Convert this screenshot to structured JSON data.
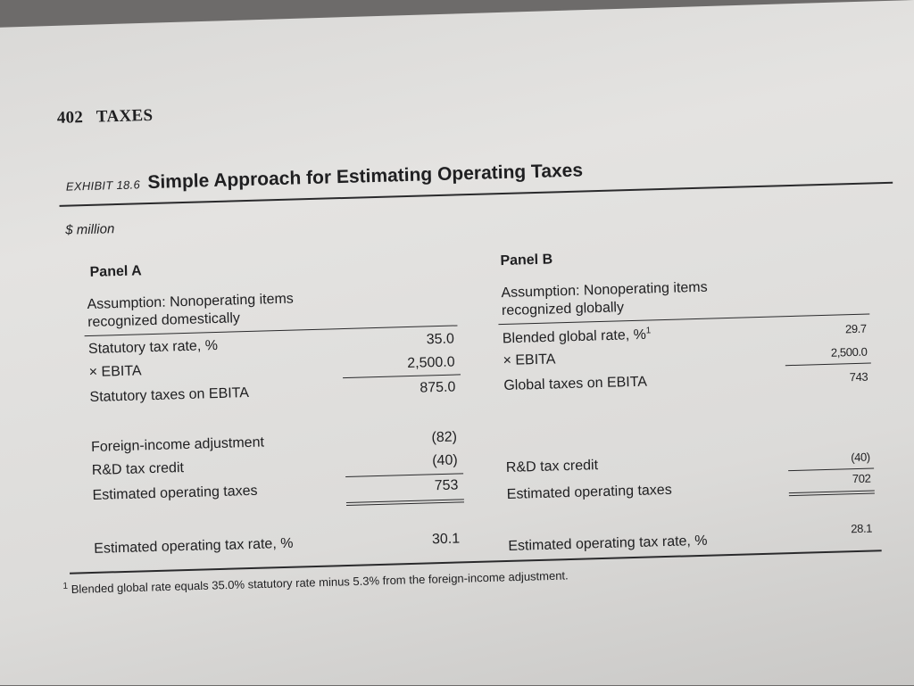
{
  "header": {
    "page_number": "402",
    "section": "TAXES"
  },
  "exhibit": {
    "label": "EXHIBIT 18.6",
    "title": "Simple Approach for Estimating Operating Taxes",
    "unit": "$ million"
  },
  "panel_a": {
    "title": "Panel A",
    "assumption_line1": "Assumption: Nonoperating items",
    "assumption_line2": "recognized domestically",
    "rows": [
      {
        "label": "Statutory tax rate, %",
        "value": "35.0"
      },
      {
        "label": "× EBITA",
        "value": "2,500.0"
      },
      {
        "label": "Statutory taxes on EBITA",
        "value": "875.0"
      },
      {
        "label": "Foreign-income adjustment",
        "value": "(82)"
      },
      {
        "label": "R&D tax credit",
        "value": "(40)"
      },
      {
        "label": "Estimated operating taxes",
        "value": "753"
      },
      {
        "label": "Estimated operating tax rate, %",
        "value": "30.1"
      }
    ]
  },
  "panel_b": {
    "title": "Panel B",
    "assumption_line1": "Assumption: Nonoperating items",
    "assumption_line2": "recognized globally",
    "rows": [
      {
        "label": "Blended global rate, %",
        "value": "29.7",
        "footnote_marker": "1"
      },
      {
        "label": "× EBITA",
        "value": "2,500.0"
      },
      {
        "label": "Global taxes on EBITA",
        "value": "743"
      },
      {
        "label": "R&D tax credit",
        "value": "(40)"
      },
      {
        "label": "Estimated operating taxes",
        "value": "702"
      },
      {
        "label": "Estimated operating tax rate, %",
        "value": "28.1"
      }
    ]
  },
  "footnote": {
    "marker": "1",
    "text": "Blended global rate equals 35.0% statutory rate minus 5.3% from the foreign-income adjustment."
  }
}
